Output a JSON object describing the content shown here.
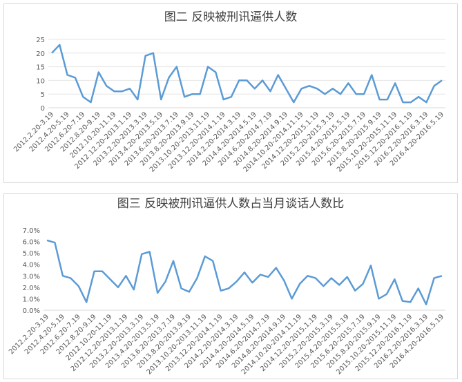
{
  "chart_data": [
    {
      "type": "line",
      "title": "图二 反映被刑讯逼供人数",
      "color": "#5b9bd5",
      "categories": [
        "2012.2.20-3.19",
        null,
        "2012.4.20-5.19",
        null,
        "2012.6.20-7.19",
        null,
        "2012.8.20-9.19",
        null,
        "2012.10.20-11.19",
        null,
        "2012.12.20-2013.1.19",
        null,
        "2013.2.20-2013.3.19",
        null,
        "2013.4.20-2013.5.19",
        null,
        "2013.6.20-2013.7.19",
        null,
        "2013.8.20-2013.9.19",
        null,
        "2013.10.20-2013.11.19",
        null,
        "2013.12.20-2014.1.19",
        null,
        "2014.2.20-2014.3.19",
        null,
        "2014.4.20-2014.5.19",
        null,
        "2014.6.20-2014.7.19",
        null,
        "2014.8.20-2014.9.19",
        null,
        "2014.10.20-2014.11.19",
        null,
        "2014.12.20-2015.1.19",
        null,
        "2015.2.20-2015.3.19",
        null,
        "2015.4.20-2015.5.19",
        null,
        "2015.6.20-2015.7.19",
        null,
        "2015.8.20-2015.9.19",
        null,
        "2015.10.20-2015.11.19",
        null,
        "2015.12.20-2016.1.19",
        null,
        "2016.2.20-2016.3.19",
        null,
        "2016.4.20-2016.5.19"
      ],
      "values": [
        20,
        23,
        12,
        11,
        4,
        2,
        13,
        8,
        6,
        6,
        7,
        3,
        19,
        20,
        3,
        11,
        15,
        4,
        5,
        5,
        15,
        13,
        3,
        4,
        10,
        10,
        7,
        10,
        6,
        12,
        7,
        2,
        7,
        8,
        7,
        5,
        7,
        5,
        9,
        5,
        5,
        12,
        3,
        3,
        9,
        2,
        2,
        4,
        2,
        8,
        10
      ],
      "ylim": [
        0,
        25
      ],
      "yticks": [
        0,
        5,
        10,
        15,
        20,
        25
      ],
      "grid": true
    },
    {
      "type": "line",
      "title": "图三 反映被刑讯逼供人数占当月谈话人数比",
      "color": "#5b9bd5",
      "categories": [
        "2012.2.20-3.19",
        null,
        "2012.4.20-5.19",
        null,
        "2012.6.20-7.19",
        null,
        "2012.8.20-9.19",
        null,
        "2012.10.20-11.19",
        null,
        "2012.12.20-2013.1.19",
        null,
        "2013.2.20-2013.3.19",
        null,
        "2013.4.20-2013.5.19",
        null,
        "2013.6.20-2013.7.19",
        null,
        "2013.8.20-2013.9.19",
        null,
        "2013.10.20-2013.11.19",
        null,
        "2013.12.20-2014.1.19",
        null,
        "2014.2.20-2014.3.19",
        null,
        "2014.4.20-2014.5.19",
        null,
        "2014.6.20-2014.7.19",
        null,
        "2014.8.20-2014.9.19",
        null,
        "2014.10.20-2014.11.19",
        null,
        "2014.12.20-2015.1.19",
        null,
        "2015.2.20-2015.3.19",
        null,
        "2015.4.20-2015.5.19",
        null,
        "2015.6.20-2015.7.19",
        null,
        "2015.8.20-2015.9.19",
        null,
        "2015.10.20-2015.11.19",
        null,
        "2015.12.20-2016.1.19",
        null,
        "2016.2.20-2016.3.19",
        null,
        "2016.4.20-2016.5.19"
      ],
      "values": [
        6.1,
        5.9,
        3.0,
        2.8,
        2.1,
        0.7,
        3.4,
        3.4,
        2.7,
        2.0,
        3.0,
        1.8,
        4.9,
        5.1,
        1.5,
        2.5,
        4.3,
        1.9,
        1.6,
        2.8,
        4.7,
        4.3,
        1.7,
        1.9,
        2.5,
        3.3,
        2.4,
        3.1,
        2.9,
        3.7,
        2.6,
        1.0,
        2.3,
        3.0,
        2.8,
        2.1,
        2.8,
        2.2,
        2.9,
        1.7,
        2.3,
        3.9,
        1.0,
        1.4,
        2.7,
        0.8,
        0.7,
        1.9,
        0.5,
        2.8,
        3.0
      ],
      "ylim": [
        0,
        7
      ],
      "yticks": [
        {
          "value": 0,
          "label": "0.0%"
        },
        {
          "value": 1,
          "label": "1.0%"
        },
        {
          "value": 2,
          "label": "2.0%"
        },
        {
          "value": 3,
          "label": "3.0%"
        },
        {
          "value": 4,
          "label": "4.0%"
        },
        {
          "value": 5,
          "label": "5.0%"
        },
        {
          "value": 6,
          "label": "6.0%"
        },
        {
          "value": 7,
          "label": "7.0%"
        }
      ],
      "grid": false
    }
  ]
}
